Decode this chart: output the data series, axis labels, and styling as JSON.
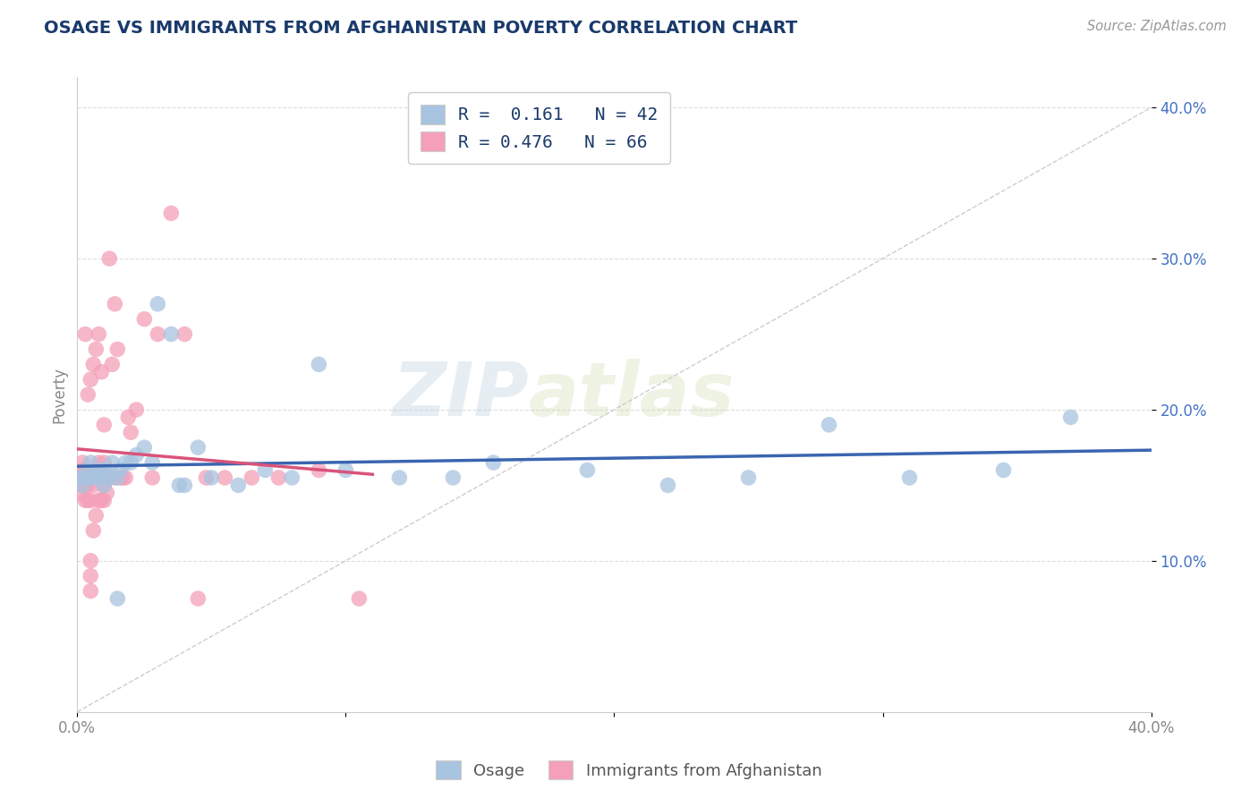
{
  "title": "OSAGE VS IMMIGRANTS FROM AFGHANISTAN POVERTY CORRELATION CHART",
  "source": "Source: ZipAtlas.com",
  "ylabel": "Poverty",
  "xlim": [
    0.0,
    0.4
  ],
  "ylim": [
    0.0,
    0.42
  ],
  "xticks": [
    0.0,
    0.1,
    0.2,
    0.3,
    0.4
  ],
  "xticklabels": [
    "0.0%",
    "",
    "",
    "",
    "40.0%"
  ],
  "yticks": [
    0.1,
    0.2,
    0.3,
    0.4
  ],
  "yticklabels": [
    "10.0%",
    "20.0%",
    "30.0%",
    "40.0%"
  ],
  "osage_color": "#a8c4e0",
  "afg_color": "#f4a0b8",
  "osage_line_color": "#3a65b0",
  "afg_line_color": "#d9547a",
  "ref_line_color": "#c8c8c8",
  "title_color": "#1a3a6b",
  "background_color": "#ffffff",
  "legend_text_color": "#1a3a6b",
  "axis_color": "#888888",
  "grid_color": "#dddddd",
  "watermark_color": "#c5d8ec",
  "osage_x": [
    0.001,
    0.002,
    0.003,
    0.004,
    0.005,
    0.006,
    0.007,
    0.008,
    0.009,
    0.01,
    0.01,
    0.012,
    0.013,
    0.015,
    0.016,
    0.018,
    0.02,
    0.022,
    0.025,
    0.028,
    0.03,
    0.035,
    0.038,
    0.04,
    0.045,
    0.05,
    0.06,
    0.07,
    0.08,
    0.09,
    0.1,
    0.12,
    0.14,
    0.155,
    0.19,
    0.22,
    0.25,
    0.28,
    0.31,
    0.345,
    0.37,
    0.015
  ],
  "osage_y": [
    0.155,
    0.15,
    0.155,
    0.16,
    0.165,
    0.155,
    0.155,
    0.155,
    0.16,
    0.16,
    0.15,
    0.155,
    0.165,
    0.155,
    0.16,
    0.165,
    0.165,
    0.17,
    0.175,
    0.165,
    0.27,
    0.25,
    0.15,
    0.15,
    0.175,
    0.155,
    0.15,
    0.16,
    0.155,
    0.23,
    0.16,
    0.155,
    0.155,
    0.165,
    0.16,
    0.15,
    0.155,
    0.19,
    0.155,
    0.16,
    0.195,
    0.075
  ],
  "afg_x": [
    0.001,
    0.001,
    0.002,
    0.002,
    0.002,
    0.003,
    0.003,
    0.003,
    0.003,
    0.004,
    0.004,
    0.004,
    0.005,
    0.005,
    0.005,
    0.005,
    0.005,
    0.006,
    0.006,
    0.006,
    0.007,
    0.007,
    0.007,
    0.008,
    0.008,
    0.008,
    0.009,
    0.009,
    0.01,
    0.01,
    0.01,
    0.01,
    0.011,
    0.011,
    0.012,
    0.013,
    0.014,
    0.015,
    0.016,
    0.017,
    0.018,
    0.019,
    0.02,
    0.022,
    0.025,
    0.028,
    0.03,
    0.035,
    0.04,
    0.048,
    0.055,
    0.065,
    0.075,
    0.09,
    0.105,
    0.045,
    0.005,
    0.006,
    0.007,
    0.008,
    0.009,
    0.01,
    0.012,
    0.014,
    0.003,
    0.004
  ],
  "afg_y": [
    0.145,
    0.155,
    0.15,
    0.16,
    0.165,
    0.14,
    0.15,
    0.155,
    0.16,
    0.14,
    0.15,
    0.16,
    0.08,
    0.09,
    0.1,
    0.14,
    0.155,
    0.12,
    0.15,
    0.16,
    0.13,
    0.155,
    0.16,
    0.14,
    0.155,
    0.165,
    0.14,
    0.155,
    0.14,
    0.15,
    0.155,
    0.165,
    0.145,
    0.155,
    0.155,
    0.23,
    0.155,
    0.24,
    0.155,
    0.155,
    0.155,
    0.195,
    0.185,
    0.2,
    0.26,
    0.155,
    0.25,
    0.33,
    0.25,
    0.155,
    0.155,
    0.155,
    0.155,
    0.16,
    0.075,
    0.075,
    0.22,
    0.23,
    0.24,
    0.25,
    0.225,
    0.19,
    0.3,
    0.27,
    0.25,
    0.21
  ]
}
